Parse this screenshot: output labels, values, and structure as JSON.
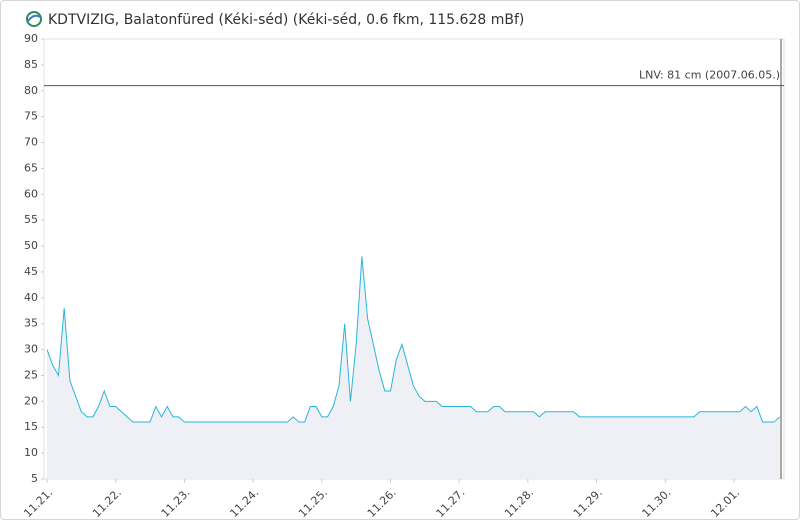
{
  "chart_data": {
    "type": "line",
    "title": "KDTVIZIG, Balatonfüred (Kéki-séd) (Kéki-séd, 0.6 fkm, 115.628 mBf)",
    "categories": [
      "11.21.",
      null,
      null,
      null,
      null,
      null,
      null,
      null,
      null,
      null,
      null,
      null,
      "11.22.",
      null,
      null,
      null,
      null,
      null,
      null,
      null,
      null,
      null,
      null,
      null,
      "11.23.",
      null,
      null,
      null,
      null,
      null,
      null,
      null,
      null,
      null,
      null,
      null,
      "11.24.",
      null,
      null,
      null,
      null,
      null,
      null,
      null,
      null,
      null,
      null,
      null,
      "11.25.",
      null,
      null,
      null,
      null,
      null,
      null,
      null,
      null,
      null,
      null,
      null,
      "11.26.",
      null,
      null,
      null,
      null,
      null,
      null,
      null,
      null,
      null,
      null,
      null,
      "11.27.",
      null,
      null,
      null,
      null,
      null,
      null,
      null,
      null,
      null,
      null,
      null,
      "11.28.",
      null,
      null,
      null,
      null,
      null,
      null,
      null,
      null,
      null,
      null,
      null,
      "11.29.",
      null,
      null,
      null,
      null,
      null,
      null,
      null,
      null,
      null,
      null,
      null,
      "11.30.",
      null,
      null,
      null,
      null,
      null,
      null,
      null,
      null,
      null,
      null,
      null,
      "12.01.",
      null,
      null,
      null,
      null,
      null,
      null,
      null,
      null
    ],
    "values": [
      30,
      27,
      25,
      38,
      24,
      21,
      18,
      17,
      17,
      19,
      22,
      19,
      19,
      18,
      17,
      16,
      16,
      16,
      16,
      19,
      17,
      19,
      17,
      17,
      16,
      16,
      16,
      16,
      16,
      16,
      16,
      16,
      16,
      16,
      16,
      16,
      16,
      16,
      16,
      16,
      16,
      16,
      16,
      17,
      16,
      16,
      19,
      19,
      17,
      17,
      19,
      23,
      35,
      20,
      31,
      48,
      36,
      31,
      26,
      22,
      22,
      28,
      31,
      27,
      23,
      21,
      20,
      20,
      20,
      19,
      19,
      19,
      19,
      19,
      19,
      18,
      18,
      18,
      19,
      19,
      18,
      18,
      18,
      18,
      18,
      18,
      17,
      18,
      18,
      18,
      18,
      18,
      18,
      17,
      17,
      17,
      17,
      17,
      17,
      17,
      17,
      17,
      17,
      17,
      17,
      17,
      17,
      17,
      17,
      17,
      17,
      17,
      17,
      17,
      18,
      18,
      18,
      18,
      18,
      18,
      18,
      18,
      19,
      18,
      19,
      16,
      16,
      16,
      17
    ],
    "color": "#29b6d8",
    "ylim": [
      5,
      90
    ],
    "yticks": [
      5,
      10,
      15,
      20,
      25,
      30,
      35,
      40,
      45,
      50,
      55,
      60,
      65,
      70,
      75,
      80,
      85,
      90
    ],
    "grid": false,
    "reference_line": {
      "value": 81,
      "label": "LNV: 81 cm (2007.06.05.)"
    }
  }
}
